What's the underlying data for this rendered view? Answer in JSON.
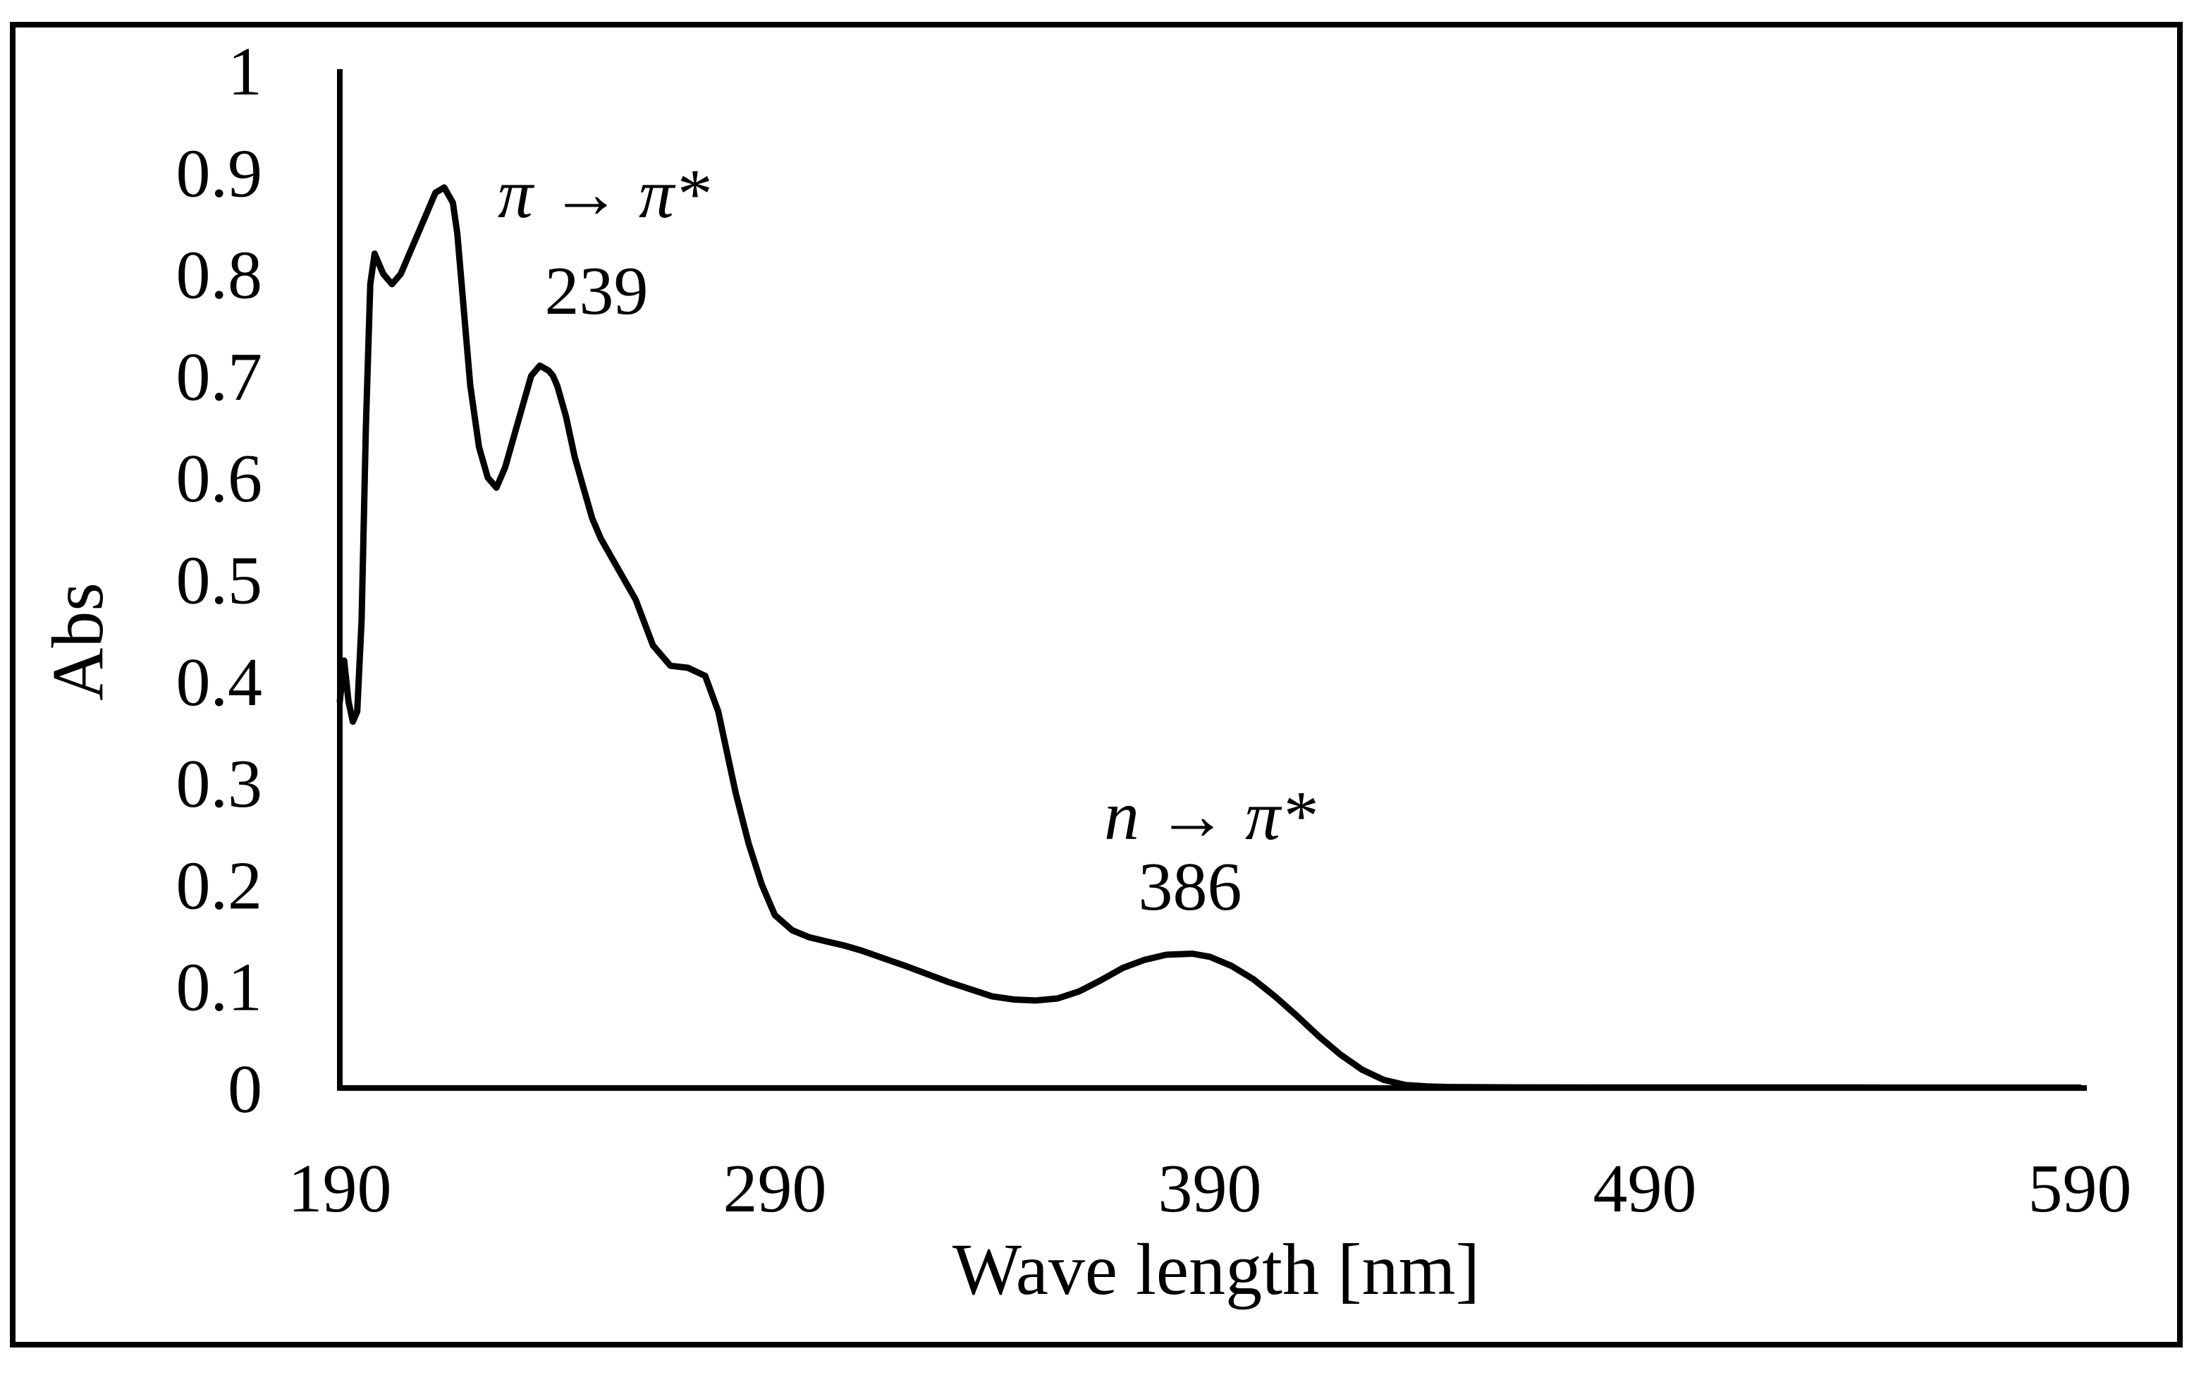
{
  "chart_data": {
    "type": "line",
    "title": "",
    "xlabel": "Wave length [nm]",
    "ylabel": "Abs",
    "xlim": [
      190,
      590
    ],
    "ylim": [
      0,
      1
    ],
    "xticks": [
      "190",
      "290",
      "390",
      "490",
      "590"
    ],
    "yticks": [
      "0",
      "0.1",
      "0.2",
      "0.3",
      "0.4",
      "0.5",
      "0.6",
      "0.7",
      "0.8",
      "0.9",
      "1"
    ],
    "grid": false,
    "legend": "none",
    "series": [
      {
        "name": "Abs",
        "color": "#000000",
        "x": [
          190,
          191,
          192,
          193,
          194,
          195,
          196,
          197,
          198,
          199,
          200,
          202,
          204,
          206,
          208,
          210,
          212,
          214,
          216,
          217,
          218,
          219,
          220,
          222,
          224,
          226,
          228,
          230,
          232,
          234,
          236,
          238,
          239,
          240,
          242,
          244,
          246,
          248,
          250,
          254,
          258,
          262,
          266,
          270,
          274,
          277,
          279,
          281,
          284,
          287,
          290,
          294,
          298,
          302,
          306,
          310,
          320,
          330,
          340,
          345,
          350,
          355,
          360,
          365,
          370,
          375,
          380,
          386,
          390,
          395,
          400,
          405,
          410,
          415,
          420,
          425,
          430,
          435,
          440,
          445,
          450,
          460,
          480,
          500,
          520,
          540,
          560,
          580,
          590
        ],
        "y": [
          0.38,
          0.42,
          0.38,
          0.36,
          0.37,
          0.46,
          0.65,
          0.79,
          0.82,
          0.81,
          0.8,
          0.79,
          0.8,
          0.82,
          0.84,
          0.86,
          0.88,
          0.885,
          0.87,
          0.84,
          0.79,
          0.74,
          0.69,
          0.63,
          0.6,
          0.59,
          0.61,
          0.64,
          0.67,
          0.7,
          0.71,
          0.705,
          0.7,
          0.69,
          0.66,
          0.62,
          0.59,
          0.56,
          0.54,
          0.51,
          0.48,
          0.435,
          0.415,
          0.413,
          0.405,
          0.37,
          0.33,
          0.29,
          0.24,
          0.2,
          0.17,
          0.155,
          0.148,
          0.144,
          0.14,
          0.135,
          0.12,
          0.104,
          0.09,
          0.087,
          0.086,
          0.088,
          0.095,
          0.106,
          0.118,
          0.126,
          0.131,
          0.132,
          0.129,
          0.12,
          0.107,
          0.09,
          0.071,
          0.051,
          0.033,
          0.018,
          0.008,
          0.003,
          0.0015,
          0.001,
          0.0008,
          0.0006,
          0.0005,
          0.0005,
          0.0005,
          0.0005,
          0.0004,
          0.0004,
          0.0004
        ]
      }
    ],
    "annotations": [
      {
        "label": "π → π*",
        "wavelength": "239",
        "x": 239,
        "y": 0.84
      },
      {
        "label": "n → π*",
        "wavelength": "386",
        "x": 386,
        "y": 0.24
      }
    ]
  }
}
